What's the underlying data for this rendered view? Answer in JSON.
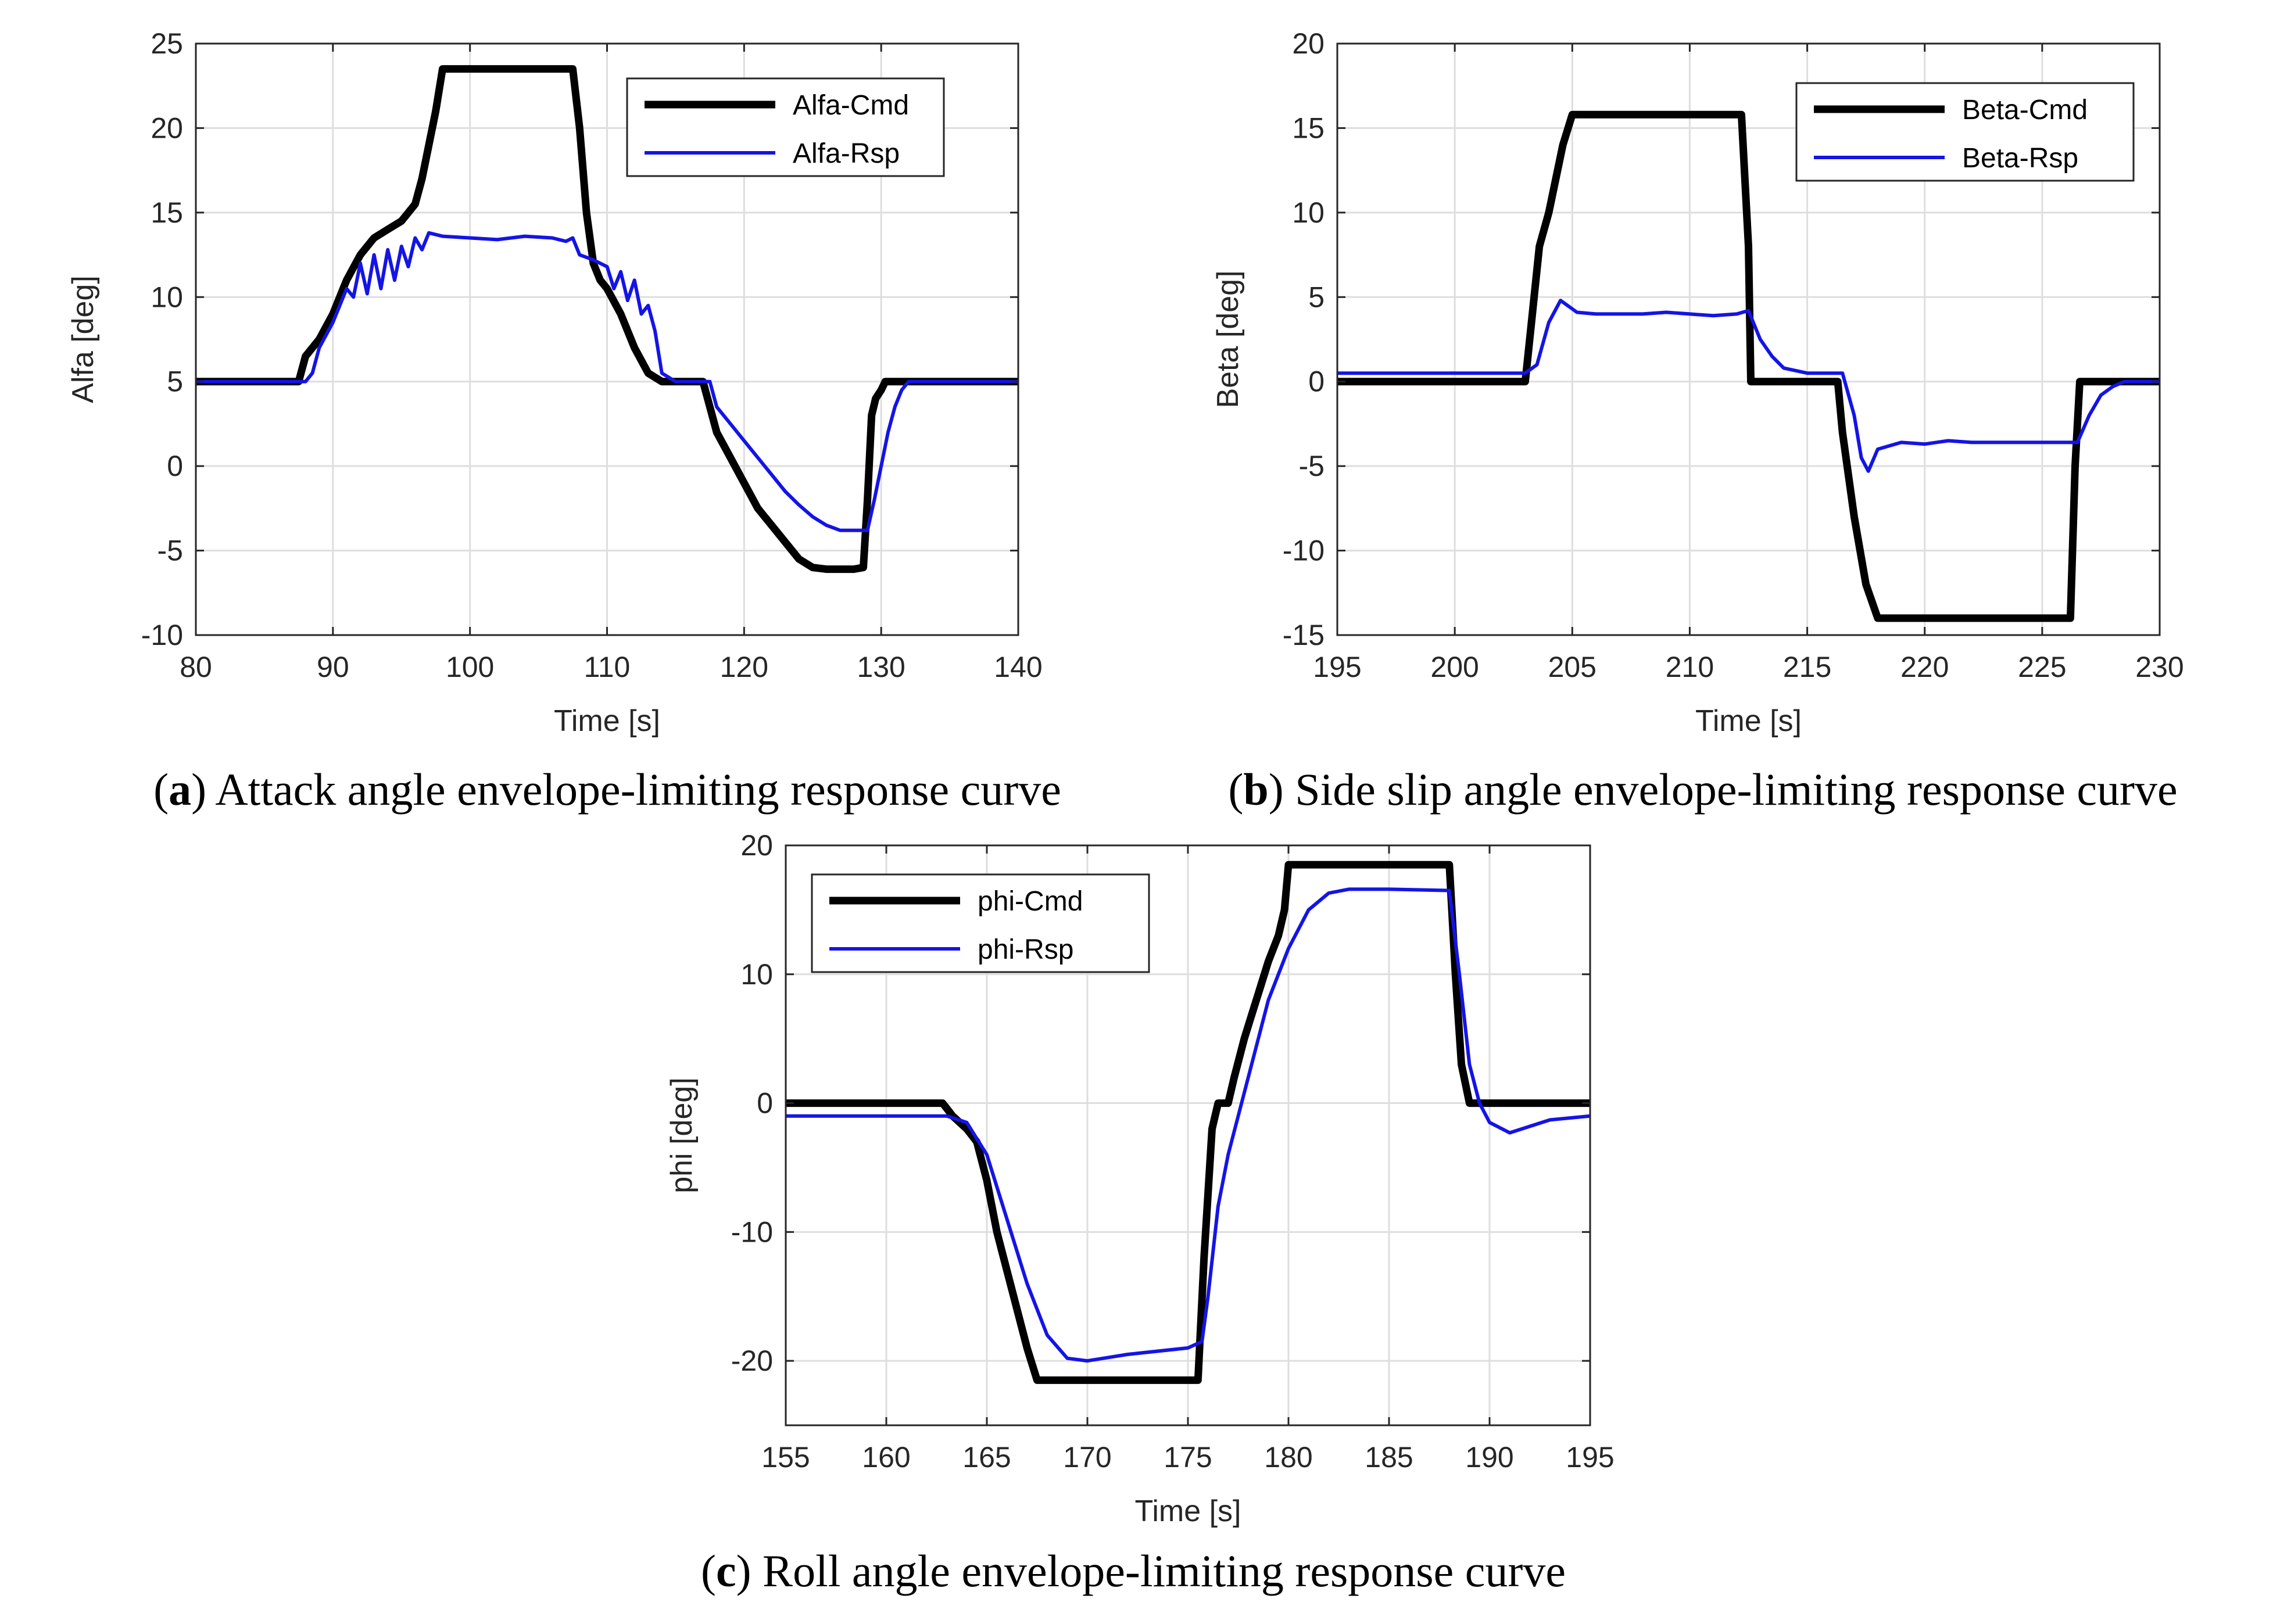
{
  "chart_data": [
    {
      "id": "a",
      "type": "line",
      "caption": {
        "label": "a",
        "text": ") Attack angle envelope-limiting response curve"
      },
      "xlabel": "Time [s]",
      "ylabel": "Alfa [deg]",
      "xlim": [
        80,
        140
      ],
      "ylim": [
        -10,
        25
      ],
      "xticks": [
        80,
        90,
        100,
        110,
        120,
        130,
        140
      ],
      "yticks": [
        -10,
        -5,
        0,
        5,
        10,
        15,
        20,
        25
      ],
      "grid": true,
      "legend_position": "top-right",
      "series": [
        {
          "name": "Alfa-Cmd",
          "color": "#000000",
          "style": "thick",
          "x": [
            80,
            87.5,
            88,
            89,
            90,
            91,
            92,
            93,
            94,
            95,
            96,
            96.5,
            97,
            97.5,
            98,
            98.2,
            100,
            102,
            104,
            106,
            107.5,
            108,
            108.5,
            109,
            109.5,
            110,
            111,
            112,
            113,
            114,
            117,
            117.5,
            118,
            119,
            120,
            121,
            122,
            123,
            124,
            125,
            126,
            127,
            128,
            128.7,
            129,
            129.3,
            129.6,
            130,
            130.3,
            140
          ],
          "y": [
            5,
            5,
            6.5,
            7.5,
            9,
            11,
            12.5,
            13.5,
            14,
            14.5,
            15.5,
            17,
            19,
            21,
            23.5,
            23.5,
            23.5,
            23.5,
            23.5,
            23.5,
            23.5,
            20,
            15,
            12,
            11,
            10.5,
            9,
            7,
            5.5,
            5,
            5,
            3.5,
            2,
            0.5,
            -1,
            -2.5,
            -3.5,
            -4.5,
            -5.5,
            -6,
            -6.1,
            -6.1,
            -6.1,
            -6,
            -2,
            3,
            4,
            4.5,
            5,
            5
          ]
        },
        {
          "name": "Alfa-Rsp",
          "color": "#1414e6",
          "style": "thin",
          "x": [
            80,
            88,
            88.5,
            89,
            90,
            91,
            91.5,
            92,
            92.5,
            93,
            93.5,
            94,
            94.5,
            95,
            95.5,
            96,
            96.5,
            97,
            98,
            100,
            102,
            104,
            106,
            107,
            107.5,
            108,
            109,
            110,
            110.5,
            111,
            111.5,
            112,
            112.5,
            113,
            113.5,
            114,
            115,
            117.5,
            118,
            119,
            120,
            121,
            122,
            123,
            124,
            125,
            126,
            127,
            128,
            129,
            129.5,
            130,
            130.5,
            131,
            131.5,
            132,
            140
          ],
          "y": [
            5,
            5,
            5.5,
            7,
            8.5,
            10.5,
            10,
            12,
            10.2,
            12.5,
            10.5,
            12.8,
            11,
            13,
            11.8,
            13.5,
            12.8,
            13.8,
            13.6,
            13.5,
            13.4,
            13.6,
            13.5,
            13.3,
            13.5,
            12.5,
            12.2,
            11.8,
            10.5,
            11.5,
            9.8,
            11,
            9,
            9.5,
            8,
            5.5,
            5,
            5,
            3.5,
            2.5,
            1.5,
            0.5,
            -0.5,
            -1.5,
            -2.3,
            -3,
            -3.5,
            -3.8,
            -3.8,
            -3.8,
            -2,
            0,
            2,
            3.5,
            4.5,
            5,
            5
          ]
        }
      ]
    },
    {
      "id": "b",
      "type": "line",
      "caption": {
        "label": "b",
        "text": ") Side slip angle envelope-limiting response curve"
      },
      "xlabel": "Time [s]",
      "ylabel": "Beta [deg]",
      "xlim": [
        195,
        230
      ],
      "ylim": [
        -15,
        20
      ],
      "xticks": [
        195,
        200,
        205,
        210,
        215,
        220,
        225,
        230
      ],
      "yticks": [
        -15,
        -10,
        -5,
        0,
        5,
        10,
        15,
        20
      ],
      "grid": true,
      "legend_position": "top-right",
      "series": [
        {
          "name": "Beta-Cmd",
          "color": "#000000",
          "style": "thick",
          "x": [
            195,
            203,
            203.3,
            203.6,
            204,
            204.3,
            204.6,
            205,
            205.3,
            207,
            210,
            212.2,
            212.5,
            212.6,
            213,
            215,
            216.3,
            216.5,
            217,
            217.5,
            218,
            220,
            222,
            225,
            226.2,
            226.4,
            226.6,
            227,
            230
          ],
          "y": [
            0,
            0,
            4,
            8,
            10,
            12,
            14,
            15.8,
            15.8,
            15.8,
            15.8,
            15.8,
            8,
            0,
            0,
            0,
            0,
            -3,
            -8,
            -12,
            -14,
            -14,
            -14,
            -14,
            -14,
            -5,
            0,
            0,
            0
          ]
        },
        {
          "name": "Beta-Rsp",
          "color": "#1414e6",
          "style": "thin",
          "x": [
            195,
            203,
            203.5,
            204,
            204.5,
            204.8,
            205.2,
            206,
            208,
            209,
            210,
            211,
            212,
            212.5,
            213,
            213.5,
            214,
            215,
            216.5,
            217,
            217.3,
            217.6,
            218,
            219,
            220,
            221,
            222,
            224,
            226.5,
            227,
            227.5,
            228,
            228.5,
            230
          ],
          "y": [
            0.5,
            0.5,
            1,
            3.5,
            4.8,
            4.5,
            4.1,
            4.0,
            4.0,
            4.1,
            4.0,
            3.9,
            4.0,
            4.2,
            2.5,
            1.5,
            0.8,
            0.5,
            0.5,
            -2,
            -4.5,
            -5.3,
            -4,
            -3.6,
            -3.7,
            -3.5,
            -3.6,
            -3.6,
            -3.6,
            -2,
            -0.8,
            -0.3,
            0,
            0
          ]
        }
      ]
    },
    {
      "id": "c",
      "type": "line",
      "caption": {
        "label": "c",
        "text": ") Roll angle envelope-limiting response curve"
      },
      "xlabel": "Time [s]",
      "ylabel": "phi [deg]",
      "xlim": [
        155,
        195
      ],
      "ylim": [
        -25,
        20
      ],
      "xticks": [
        155,
        160,
        165,
        170,
        175,
        180,
        185,
        190,
        195
      ],
      "yticks": [
        -20,
        -10,
        0,
        10,
        20
      ],
      "grid": true,
      "legend_position": "top-left",
      "series": [
        {
          "name": "phi-Cmd",
          "color": "#000000",
          "style": "thick",
          "x": [
            155,
            162.8,
            163.3,
            164,
            164.5,
            165,
            165.5,
            166,
            166.5,
            167,
            167.5,
            170,
            172,
            175.5,
            175.8,
            176.2,
            176.5,
            177,
            177.3,
            177.8,
            178.2,
            178.6,
            179,
            179.5,
            179.8,
            180,
            182,
            185,
            188,
            188.3,
            188.6,
            189,
            195
          ],
          "y": [
            0,
            0,
            -1,
            -2,
            -3,
            -6,
            -10,
            -13,
            -16,
            -19,
            -21.5,
            -21.5,
            -21.5,
            -21.5,
            -12,
            -2,
            0,
            0,
            2,
            5,
            7,
            9,
            11,
            13,
            15,
            18.5,
            18.5,
            18.5,
            18.5,
            10,
            3,
            0,
            0
          ]
        },
        {
          "name": "phi-Rsp",
          "color": "#1414e6",
          "style": "thin",
          "x": [
            155,
            160,
            163,
            164,
            165,
            166,
            167,
            168,
            169,
            170,
            172,
            175,
            175.7,
            176,
            176.5,
            177,
            178,
            179,
            180,
            181,
            182,
            183,
            185,
            188,
            188.5,
            189,
            189.5,
            190,
            191,
            192,
            193,
            195
          ],
          "y": [
            -1,
            -1,
            -1,
            -1.5,
            -4,
            -9,
            -14,
            -18,
            -19.8,
            -20,
            -19.5,
            -19,
            -18.5,
            -15,
            -8,
            -4,
            2,
            8,
            12,
            15,
            16.3,
            16.6,
            16.6,
            16.5,
            10,
            3,
            0,
            -1.5,
            -2.3,
            -1.8,
            -1.3,
            -1
          ]
        }
      ]
    }
  ]
}
